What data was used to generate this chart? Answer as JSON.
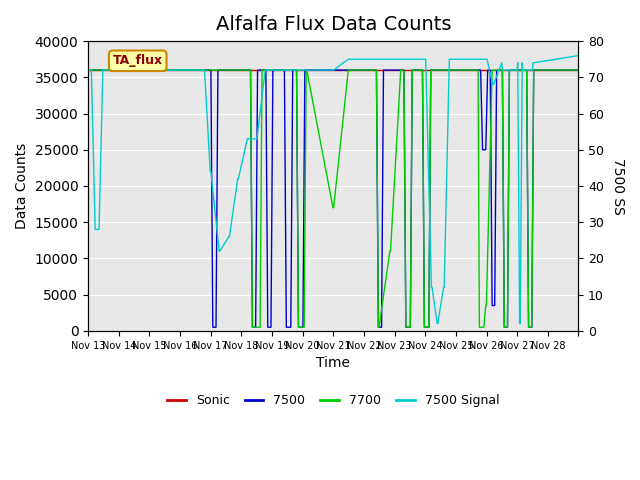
{
  "title": "Alfalfa Flux Data Counts",
  "xlabel": "Time",
  "ylabel_left": "Data Counts",
  "ylabel_right": "7500 SS",
  "ylim_left": [
    0,
    40000
  ],
  "ylim_right": [
    0,
    80
  ],
  "legend_labels": [
    "Sonic",
    "7500",
    "7700",
    "7500 Signal"
  ],
  "legend_colors": [
    "#cc0000",
    "#0000cc",
    "#00cc00",
    "#00cccc"
  ],
  "annotation_text": "TA_flux",
  "plot_bg": "#e8e8e8",
  "x_tick_labels": [
    "Nov 13",
    "Nov 14",
    "Nov 15",
    "Nov 16",
    "Nov 17",
    "Nov 18",
    "Nov 19",
    "Nov 20",
    "Nov 21",
    "Nov 22",
    "Nov 23",
    "Nov 24",
    "Nov 25",
    "Nov 26",
    "Nov 27",
    "Nov 28"
  ],
  "title_fontsize": 14
}
